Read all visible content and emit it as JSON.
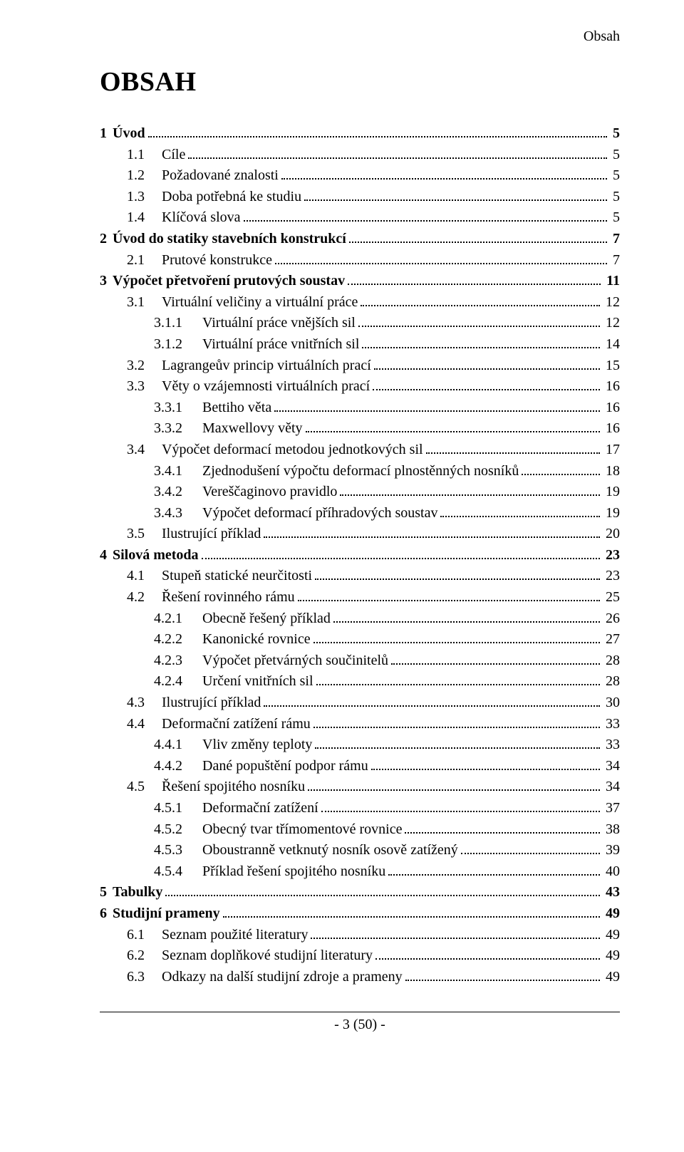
{
  "running_header": "Obsah",
  "title": "OBSAH",
  "footer": "- 3 (50) -",
  "toc": [
    {
      "level": 0,
      "bold": true,
      "num": "1",
      "label": "Úvod",
      "page": "5"
    },
    {
      "level": 1,
      "bold": false,
      "num": "1.1",
      "label": "Cíle",
      "page": "5"
    },
    {
      "level": 1,
      "bold": false,
      "num": "1.2",
      "label": "Požadované znalosti",
      "page": "5"
    },
    {
      "level": 1,
      "bold": false,
      "num": "1.3",
      "label": "Doba potřebná ke studiu",
      "page": "5"
    },
    {
      "level": 1,
      "bold": false,
      "num": "1.4",
      "label": "Klíčová slova",
      "page": "5"
    },
    {
      "level": 0,
      "bold": true,
      "num": "2",
      "label": "Úvod do statiky stavebních konstrukcí",
      "page": "7"
    },
    {
      "level": 1,
      "bold": false,
      "num": "2.1",
      "label": "Prutové konstrukce",
      "page": "7"
    },
    {
      "level": 0,
      "bold": true,
      "num": "3",
      "label": "Výpočet přetvoření prutových soustav",
      "page": "11"
    },
    {
      "level": 1,
      "bold": false,
      "num": "3.1",
      "label": "Virtuální veličiny a virtuální práce",
      "page": "12"
    },
    {
      "level": 2,
      "bold": false,
      "num": "3.1.1",
      "label": "Virtuální práce vnějších sil",
      "page": "12"
    },
    {
      "level": 2,
      "bold": false,
      "num": "3.1.2",
      "label": "Virtuální práce vnitřních sil",
      "page": "14"
    },
    {
      "level": 1,
      "bold": false,
      "num": "3.2",
      "label": "Lagrangeův princip virtuálních prací",
      "page": "15"
    },
    {
      "level": 1,
      "bold": false,
      "num": "3.3",
      "label": "Věty o vzájemnosti virtuálních prací",
      "page": "16"
    },
    {
      "level": 2,
      "bold": false,
      "num": "3.3.1",
      "label": "Bettiho věta",
      "page": "16"
    },
    {
      "level": 2,
      "bold": false,
      "num": "3.3.2",
      "label": "Maxwellovy věty",
      "page": "16"
    },
    {
      "level": 1,
      "bold": false,
      "num": "3.4",
      "label": "Výpočet deformací metodou jednotkových sil",
      "page": "17"
    },
    {
      "level": 2,
      "bold": false,
      "num": "3.4.1",
      "label": "Zjednodušení výpočtu deformací plnostěnných nosníků",
      "page": "18"
    },
    {
      "level": 2,
      "bold": false,
      "num": "3.4.2",
      "label": "Vereščaginovo pravidlo",
      "page": "19"
    },
    {
      "level": 2,
      "bold": false,
      "num": "3.4.3",
      "label": "Výpočet deformací příhradových soustav",
      "page": "19"
    },
    {
      "level": 1,
      "bold": false,
      "num": "3.5",
      "label": "Ilustrující příklad",
      "page": "20"
    },
    {
      "level": 0,
      "bold": true,
      "num": "4",
      "label": "Silová metoda",
      "page": "23"
    },
    {
      "level": 1,
      "bold": false,
      "num": "4.1",
      "label": "Stupeň statické neurčitosti",
      "page": "23"
    },
    {
      "level": 1,
      "bold": false,
      "num": "4.2",
      "label": "Řešení rovinného rámu",
      "page": "25"
    },
    {
      "level": 2,
      "bold": false,
      "num": "4.2.1",
      "label": "Obecně řešený příklad",
      "page": "26"
    },
    {
      "level": 2,
      "bold": false,
      "num": "4.2.2",
      "label": "Kanonické rovnice",
      "page": "27"
    },
    {
      "level": 2,
      "bold": false,
      "num": "4.2.3",
      "label": "Výpočet přetvárných součinitelů",
      "page": "28"
    },
    {
      "level": 2,
      "bold": false,
      "num": "4.2.4",
      "label": "Určení vnitřních sil",
      "page": "28"
    },
    {
      "level": 1,
      "bold": false,
      "num": "4.3",
      "label": "Ilustrující příklad",
      "page": "30"
    },
    {
      "level": 1,
      "bold": false,
      "num": "4.4",
      "label": "Deformační zatížení rámu",
      "page": "33"
    },
    {
      "level": 2,
      "bold": false,
      "num": "4.4.1",
      "label": "Vliv změny teploty",
      "page": "33"
    },
    {
      "level": 2,
      "bold": false,
      "num": "4.4.2",
      "label": "Dané popuštění podpor rámu",
      "page": "34"
    },
    {
      "level": 1,
      "bold": false,
      "num": "4.5",
      "label": "Řešení spojitého nosníku",
      "page": "34"
    },
    {
      "level": 2,
      "bold": false,
      "num": "4.5.1",
      "label": "Deformační zatížení",
      "page": "37"
    },
    {
      "level": 2,
      "bold": false,
      "num": "4.5.2",
      "label": "Obecný tvar třímomentové rovnice",
      "page": "38"
    },
    {
      "level": 2,
      "bold": false,
      "num": "4.5.3",
      "label": "Oboustranně vetknutý nosník osově zatížený",
      "page": "39"
    },
    {
      "level": 2,
      "bold": false,
      "num": "4.5.4",
      "label": "Příklad řešení spojitého nosníku",
      "page": "40"
    },
    {
      "level": 0,
      "bold": true,
      "num": "5",
      "label": "Tabulky",
      "page": "43"
    },
    {
      "level": 0,
      "bold": true,
      "num": "6",
      "label": "Studijní prameny",
      "page": "49"
    },
    {
      "level": 1,
      "bold": false,
      "num": "6.1",
      "label": "Seznam použité literatury",
      "page": "49"
    },
    {
      "level": 1,
      "bold": false,
      "num": "6.2",
      "label": "Seznam doplňkové studijní literatury",
      "page": "49"
    },
    {
      "level": 1,
      "bold": false,
      "num": "6.3",
      "label": "Odkazy na další studijní zdroje a prameny",
      "page": "49"
    }
  ]
}
